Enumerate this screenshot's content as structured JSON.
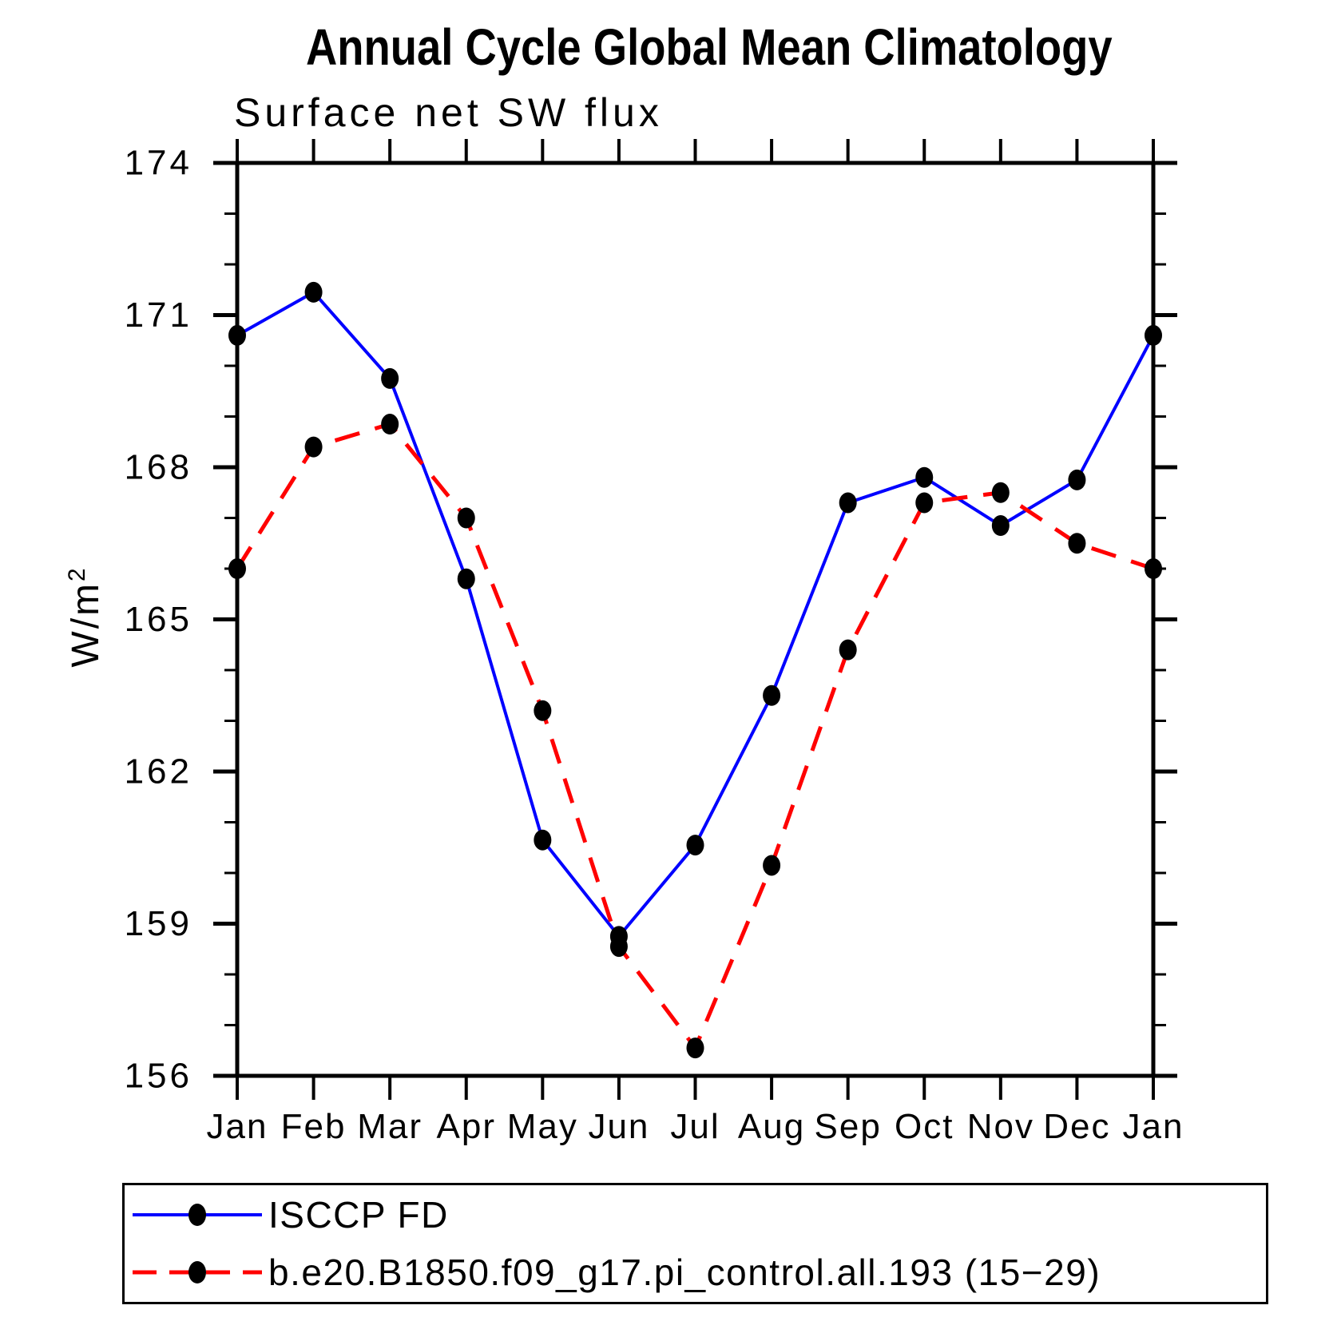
{
  "chart_data": {
    "type": "line",
    "title": "Annual Cycle Global Mean Climatology",
    "subtitle": "Surface net SW flux",
    "ylabel": "W/m²",
    "ylabel_parts": {
      "text": "W/m",
      "sup": "2"
    },
    "xlabel": "",
    "x_categories": [
      "Jan",
      "Feb",
      "Mar",
      "Apr",
      "May",
      "Jun",
      "Jul",
      "Aug",
      "Sep",
      "Oct",
      "Nov",
      "Dec",
      "Jan"
    ],
    "ylim": [
      156,
      174
    ],
    "y_major_ticks": [
      156,
      159,
      162,
      165,
      168,
      171,
      174
    ],
    "y_minor_step": 1,
    "grid": "off",
    "legend_position": "bottom-box",
    "axis_color": "#000000",
    "marker_color": "#000000",
    "series": [
      {
        "name": "ISCCP FD",
        "color": "#0000ff",
        "style": "solid",
        "marker": "circle",
        "values": [
          170.6,
          171.45,
          169.75,
          165.8,
          160.65,
          158.75,
          160.55,
          163.5,
          167.3,
          167.8,
          166.85,
          167.75,
          170.6
        ]
      },
      {
        "name": "b.e20.B1850.f09_g17.pi_control.all.193 (15−29)",
        "color": "#ff0000",
        "style": "dashed",
        "marker": "circle",
        "values": [
          166.0,
          168.4,
          168.85,
          167.0,
          163.2,
          158.55,
          156.55,
          160.15,
          164.4,
          167.3,
          167.5,
          166.5,
          166.0
        ]
      }
    ]
  }
}
